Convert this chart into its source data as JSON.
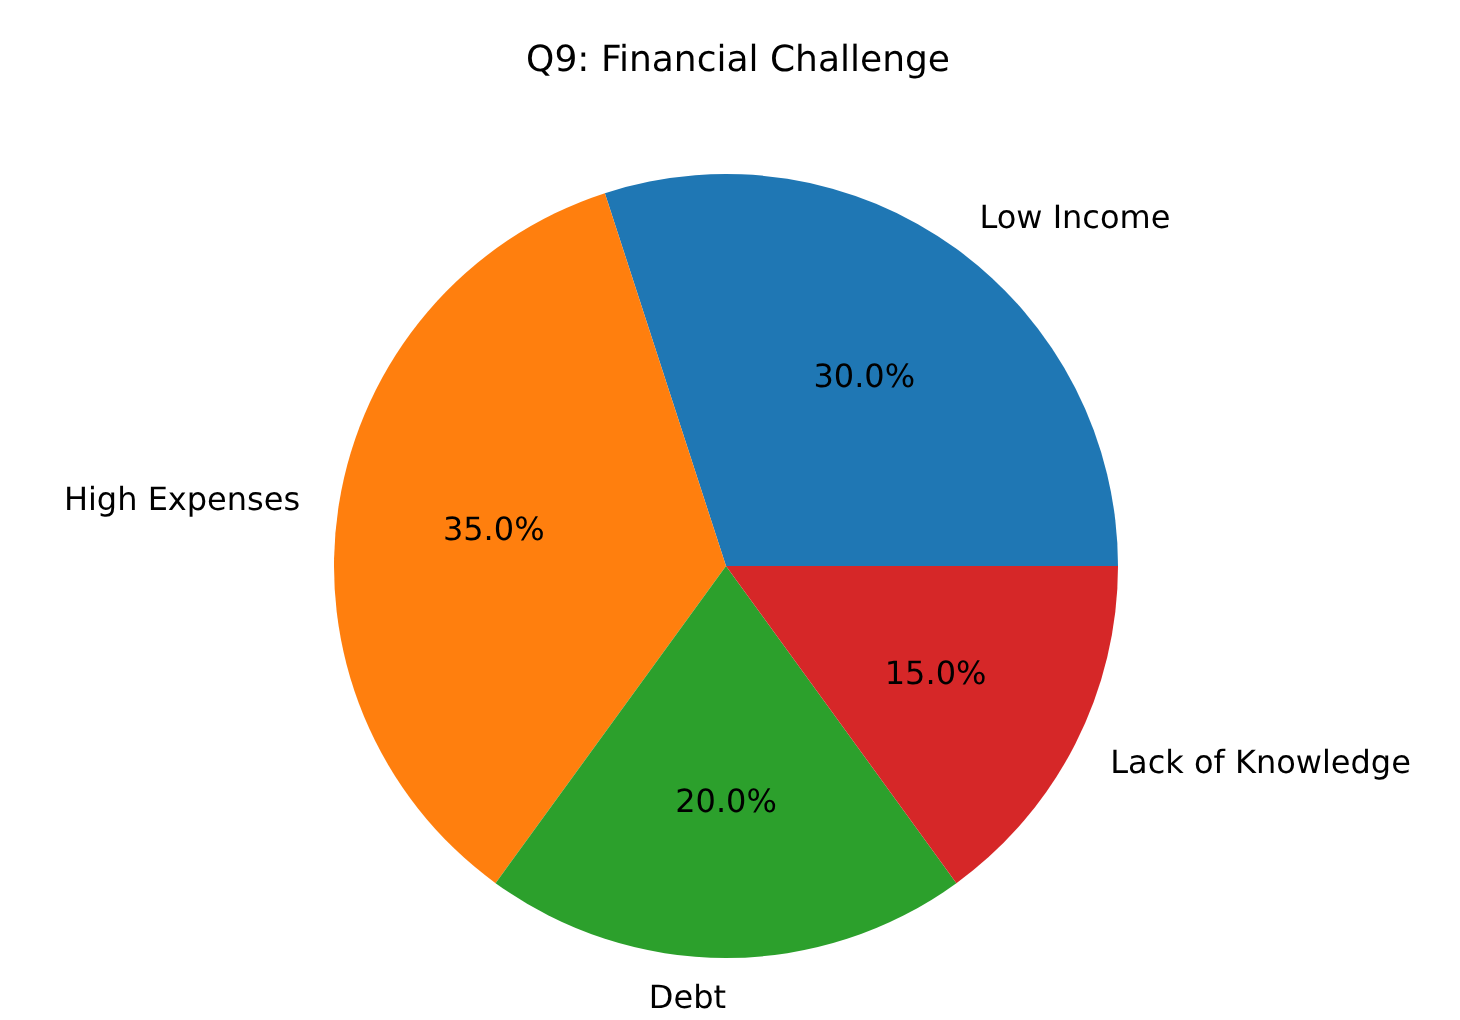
{
  "chart_data": {
    "type": "pie",
    "title": "Q9: Financial Challenge",
    "categories": [
      "Low Income",
      "High Expenses",
      "Debt",
      "Lack of Knowledge"
    ],
    "values": [
      30,
      35,
      20,
      15
    ],
    "colors": [
      "#1f77b4",
      "#ff7f0e",
      "#2ca02c",
      "#d62728"
    ],
    "value_labels": [
      "30.0%",
      "35.0%",
      "20.0%",
      "15.0%"
    ],
    "legend": false
  }
}
